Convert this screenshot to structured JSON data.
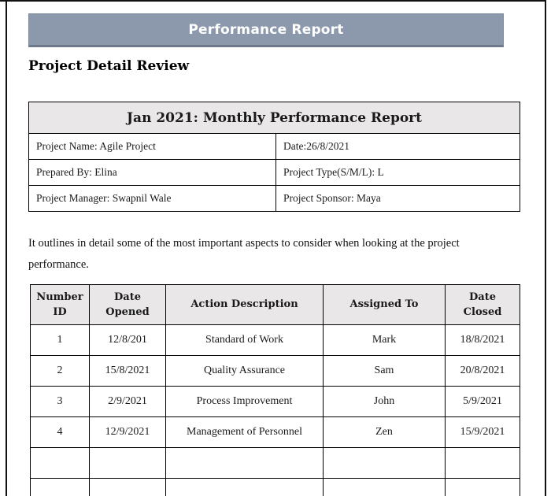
{
  "document": {
    "banner": {
      "title": "Performance Report"
    },
    "heading": "Project Detail Review",
    "info_table": {
      "title": "Jan 2021: Monthly Performance Report",
      "rows": [
        [
          "Project Name: Agile Project",
          "Date:26/8/2021"
        ],
        [
          "Prepared By: Elina",
          "Project Type(S/M/L): L"
        ],
        [
          "Project Manager: Swapnil Wale",
          "Project Sponsor: Maya"
        ]
      ]
    },
    "intro_paragraph": "It outlines in detail some of the most important aspects to consider when looking at the project performance.",
    "action_table": {
      "headers": [
        "Number ID",
        "Date Opened",
        "Action Description",
        "Assigned To",
        "Date Closed"
      ],
      "rows": [
        [
          "1",
          "12/8/201",
          "Standard of Work",
          "Mark",
          "18/8/2021"
        ],
        [
          "2",
          "15/8/2021",
          "Quality Assurance",
          "Sam",
          "20/8/2021"
        ],
        [
          "3",
          "2/9/2021",
          "Process Improvement",
          "John",
          "5/9/2021"
        ],
        [
          "4",
          "12/9/2021",
          "Management of Personnel",
          "Zen",
          "15/9/2021"
        ],
        [
          "",
          "",
          "",
          "",
          ""
        ],
        [
          "",
          "",
          "",
          "",
          ""
        ]
      ]
    },
    "colors": {
      "banner_bg": "#8C99AC",
      "banner_border": "#6E7A8C",
      "table_header_bg": "#E9E7E8",
      "table_border": "#000000",
      "text": "#1A1A1A",
      "banner_text": "#FFFFFF"
    }
  }
}
